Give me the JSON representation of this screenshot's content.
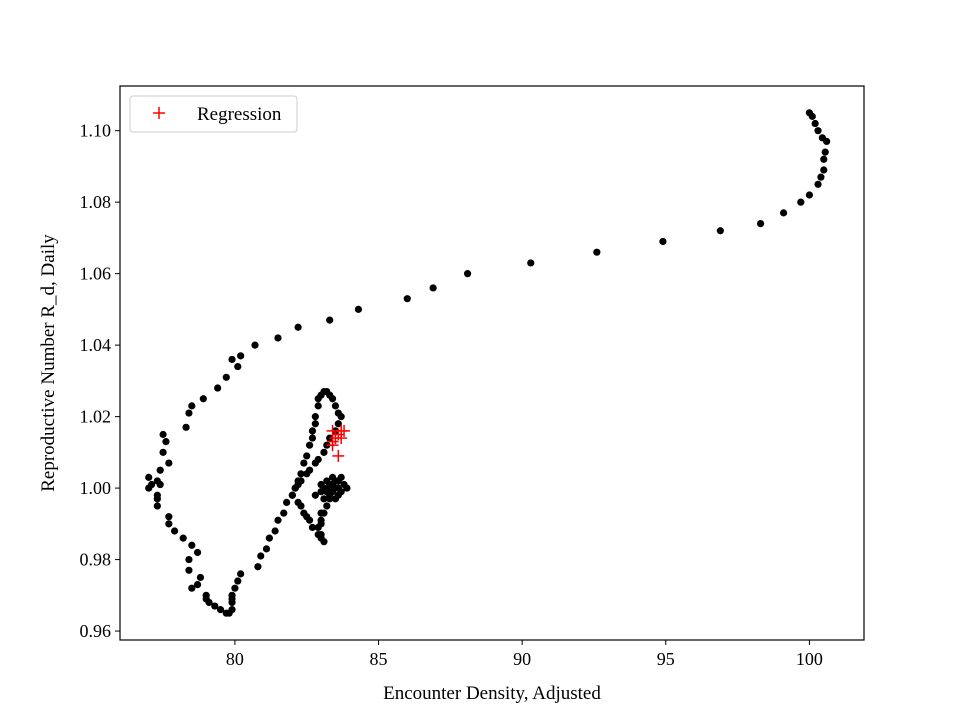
{
  "chart_data": {
    "type": "scatter",
    "title": "",
    "xlabel": "Encounter Density, Adjusted",
    "ylabel": "Reproductive Number R_d, Daily",
    "xlim": [
      76.0,
      101.9
    ],
    "ylim": [
      0.9575,
      1.1125
    ],
    "xticks": [
      80,
      85,
      90,
      95,
      100
    ],
    "yticks": [
      0.96,
      0.98,
      1.0,
      1.02,
      1.04,
      1.06,
      1.08,
      1.1
    ],
    "grid": false,
    "legend": {
      "position": "top-left",
      "entries": [
        "Regression"
      ]
    },
    "series": [
      {
        "marker": "dot",
        "color": "#000000",
        "points": [
          [
            100.0,
            1.105
          ],
          [
            100.1,
            1.104
          ],
          [
            100.2,
            1.102
          ],
          [
            100.3,
            1.1
          ],
          [
            100.45,
            1.098
          ],
          [
            100.6,
            1.097
          ],
          [
            100.55,
            1.094
          ],
          [
            100.5,
            1.092
          ],
          [
            100.5,
            1.089
          ],
          [
            100.4,
            1.087
          ],
          [
            100.3,
            1.085
          ],
          [
            100.0,
            1.082
          ],
          [
            99.7,
            1.08
          ],
          [
            99.1,
            1.077
          ],
          [
            98.3,
            1.074
          ],
          [
            96.9,
            1.072
          ],
          [
            94.9,
            1.069
          ],
          [
            92.6,
            1.066
          ],
          [
            90.3,
            1.063
          ],
          [
            88.1,
            1.06
          ],
          [
            86.9,
            1.056
          ],
          [
            86.0,
            1.053
          ],
          [
            84.3,
            1.05
          ],
          [
            83.3,
            1.047
          ],
          [
            82.2,
            1.045
          ],
          [
            81.5,
            1.042
          ],
          [
            80.7,
            1.04
          ],
          [
            80.2,
            1.037
          ],
          [
            79.9,
            1.036
          ],
          [
            80.1,
            1.034
          ],
          [
            79.7,
            1.031
          ],
          [
            79.4,
            1.028
          ],
          [
            78.9,
            1.025
          ],
          [
            78.5,
            1.023
          ],
          [
            78.4,
            1.021
          ],
          [
            78.3,
            1.017
          ],
          [
            77.5,
            1.015
          ],
          [
            77.6,
            1.013
          ],
          [
            77.5,
            1.01
          ],
          [
            77.7,
            1.007
          ],
          [
            77.4,
            1.005
          ],
          [
            77.3,
            1.002
          ],
          [
            77.1,
            1.001
          ],
          [
            77.0,
            1.003
          ],
          [
            77.4,
            1.001
          ],
          [
            77.0,
            1.0
          ],
          [
            77.3,
            0.998
          ],
          [
            77.3,
            0.997
          ],
          [
            77.3,
            0.995
          ],
          [
            77.7,
            0.992
          ],
          [
            77.7,
            0.99
          ],
          [
            77.9,
            0.988
          ],
          [
            78.2,
            0.986
          ],
          [
            78.5,
            0.984
          ],
          [
            78.7,
            0.982
          ],
          [
            78.4,
            0.98
          ],
          [
            78.4,
            0.977
          ],
          [
            78.8,
            0.975
          ],
          [
            78.7,
            0.973
          ],
          [
            78.5,
            0.972
          ],
          [
            79.0,
            0.97
          ],
          [
            79.0,
            0.969
          ],
          [
            79.1,
            0.968
          ],
          [
            79.3,
            0.967
          ],
          [
            79.5,
            0.966
          ],
          [
            79.7,
            0.965
          ],
          [
            79.8,
            0.965
          ],
          [
            79.9,
            0.966
          ],
          [
            79.9,
            0.968
          ],
          [
            79.9,
            0.969
          ],
          [
            79.9,
            0.97
          ],
          [
            80.0,
            0.972
          ],
          [
            80.1,
            0.974
          ],
          [
            80.2,
            0.976
          ],
          [
            80.8,
            0.978
          ],
          [
            80.9,
            0.981
          ],
          [
            81.1,
            0.983
          ],
          [
            81.2,
            0.986
          ],
          [
            81.4,
            0.988
          ],
          [
            81.5,
            0.991
          ],
          [
            81.7,
            0.993
          ],
          [
            81.8,
            0.996
          ],
          [
            82.0,
            0.998
          ],
          [
            82.1,
            1.0
          ],
          [
            82.2,
            1.002
          ],
          [
            82.3,
            1.004
          ],
          [
            82.4,
            1.007
          ],
          [
            82.5,
            1.009
          ],
          [
            82.6,
            1.012
          ],
          [
            82.7,
            1.014
          ],
          [
            82.7,
            1.016
          ],
          [
            82.8,
            1.018
          ],
          [
            82.8,
            1.02
          ],
          [
            82.9,
            1.023
          ],
          [
            82.9,
            1.025
          ],
          [
            83.0,
            1.026
          ],
          [
            83.1,
            1.027
          ],
          [
            83.2,
            1.027
          ],
          [
            83.3,
            1.026
          ],
          [
            83.4,
            1.025
          ],
          [
            83.5,
            1.023
          ],
          [
            83.6,
            1.021
          ],
          [
            83.7,
            1.02
          ],
          [
            83.6,
            1.018
          ],
          [
            83.5,
            1.016
          ],
          [
            83.3,
            1.014
          ],
          [
            83.2,
            1.012
          ],
          [
            83.1,
            1.01
          ],
          [
            82.9,
            1.008
          ],
          [
            82.8,
            1.007
          ],
          [
            82.6,
            1.005
          ],
          [
            82.5,
            1.004
          ],
          [
            82.3,
            1.002
          ],
          [
            82.2,
            1.001
          ],
          [
            82.1,
            1.0
          ],
          [
            82.0,
            0.998
          ],
          [
            82.2,
            0.996
          ],
          [
            82.3,
            0.995
          ],
          [
            82.4,
            0.993
          ],
          [
            82.5,
            0.992
          ],
          [
            82.6,
            0.991
          ],
          [
            82.7,
            0.989
          ],
          [
            82.9,
            0.987
          ],
          [
            83.0,
            0.986
          ],
          [
            83.1,
            0.985
          ],
          [
            83.0,
            0.987
          ],
          [
            82.9,
            0.989
          ],
          [
            83.0,
            0.991
          ],
          [
            83.1,
            0.993
          ],
          [
            83.2,
            0.995
          ],
          [
            83.3,
            0.997
          ],
          [
            83.4,
            0.999
          ],
          [
            83.5,
            1.0
          ],
          [
            83.4,
            1.001
          ],
          [
            83.6,
            1.002
          ],
          [
            83.7,
            1.003
          ],
          [
            83.8,
            1.001
          ],
          [
            83.9,
            1.0
          ],
          [
            83.7,
            0.999
          ],
          [
            83.6,
            0.998
          ],
          [
            83.5,
            0.997
          ],
          [
            83.3,
            0.998
          ],
          [
            83.2,
            0.999
          ],
          [
            83.1,
            1.0
          ],
          [
            83.0,
            1.001
          ],
          [
            83.2,
            1.002
          ],
          [
            83.4,
            1.003
          ],
          [
            83.5,
            1.002
          ],
          [
            83.3,
            1.0
          ],
          [
            83.0,
            0.999
          ],
          [
            82.8,
            0.998
          ],
          [
            83.3,
            1.001
          ],
          [
            83.6,
            1.0
          ],
          [
            83.1,
            0.997
          ],
          [
            83.0,
            0.993
          ],
          [
            83.0,
            0.99
          ]
        ]
      },
      {
        "name": "Regression",
        "marker": "plus",
        "color": "#ff0000",
        "points": [
          [
            83.4,
            1.016
          ],
          [
            83.6,
            1.015
          ],
          [
            83.7,
            1.016
          ],
          [
            83.8,
            1.016
          ],
          [
            83.7,
            1.014
          ],
          [
            83.5,
            1.014
          ],
          [
            83.4,
            1.012
          ],
          [
            83.4,
            1.013
          ],
          [
            83.6,
            1.009
          ]
        ]
      }
    ]
  }
}
